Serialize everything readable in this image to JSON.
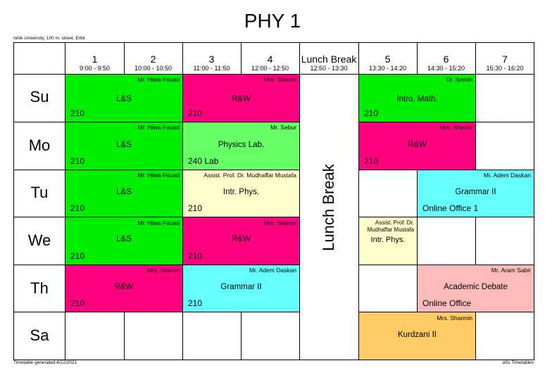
{
  "title": "PHY 1",
  "school": "Ishik University, 100 m. street, Erbil",
  "footer_left": "Timetable generated:4/22/2021",
  "footer_right": "aSc Timetables",
  "periods": [
    {
      "num": "1",
      "time": "9:00 - 9:50"
    },
    {
      "num": "2",
      "time": "10:00 - 10:50"
    },
    {
      "num": "3",
      "time": "11:00 - 11:50"
    },
    {
      "num": "4",
      "time": "12:00 - 12:50"
    },
    {
      "num": "Lunch Break",
      "time": "12:50 - 13:30"
    },
    {
      "num": "5",
      "time": "13:30 - 14:20"
    },
    {
      "num": "6",
      "time": "14:30 - 15:20"
    },
    {
      "num": "7",
      "time": "15:30 - 16:20"
    }
  ],
  "days": [
    "Su",
    "Mo",
    "Tu",
    "We",
    "Th",
    "Sa"
  ],
  "lunch_label": "Lunch Break",
  "lessons": [
    {
      "teacher": "Mr. Hiwa Fouad",
      "subject": "L&S",
      "room": "210",
      "color": "#00ee00"
    },
    {
      "teacher": "Mrs. Sharon",
      "subject": "R&W",
      "room": "210",
      "color": "#ff0080"
    },
    {
      "teacher": "Dr. Semih",
      "subject": "Intro. Math.",
      "room": "210",
      "color": "#00ee00"
    },
    {
      "teacher": "Mr. Hiwa Fouad",
      "subject": "L&S",
      "room": "210",
      "color": "#00ee00"
    },
    {
      "teacher": "Mr. Sebur",
      "subject": "Physics Lab.",
      "room": "240 Lab",
      "color": "#66ff66"
    },
    {
      "teacher": "Mrs. Sharon",
      "subject": "R&W",
      "room": "210",
      "color": "#ff0080"
    },
    {
      "teacher": "Mr. Hiwa Fouad",
      "subject": "L&S",
      "room": "210",
      "color": "#00ee00"
    },
    {
      "teacher": "Assist. Prof. Dr. Mudhaffar Mustafa",
      "subject": "Intr. Phys.",
      "room": "210",
      "color": "#ffffcc"
    },
    {
      "teacher": "Mr. Adem Daskan",
      "subject": "Grammar II",
      "room": "Online Office 1",
      "color": "#66ffff"
    },
    {
      "teacher": "Mr. Hiwa Fouad",
      "subject": "L&S",
      "room": "210",
      "color": "#00ee00"
    },
    {
      "teacher": "Mrs. Sharon",
      "subject": "R&W",
      "room": "210",
      "color": "#ff0080"
    },
    {
      "teacher": "Assist. Prof. Dr. Mudhaffar Mustafa",
      "subject": "Intr. Phys.",
      "room": "",
      "color": "#ffffcc"
    },
    {
      "teacher": "Mrs. Sharon",
      "subject": "R&W",
      "room": "210",
      "color": "#ff0080"
    },
    {
      "teacher": "Mr. Adem Daskan",
      "subject": "Grammar II",
      "room": "210",
      "color": "#66ffff"
    },
    {
      "teacher": "Mr. Aram Sabir",
      "subject": "Academic Debate",
      "room": "Online Office",
      "color": "#ffbbbb"
    },
    {
      "teacher": "Mrs. Sharmin",
      "subject": "Kurdzani II",
      "room": "",
      "color": "#ffcc66"
    }
  ]
}
